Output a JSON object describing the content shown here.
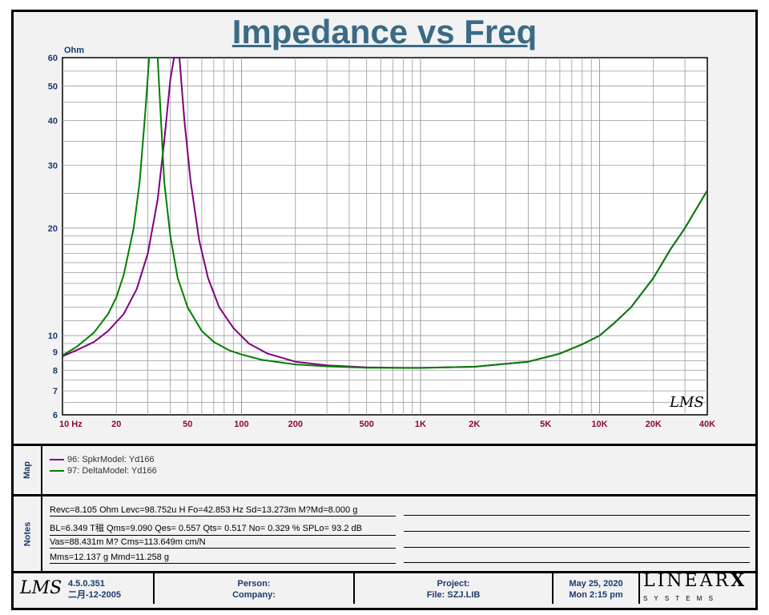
{
  "chart_data": {
    "type": "line",
    "title": "Impedance vs Freq",
    "ylabel": "Ohm",
    "x_scale": "log",
    "y_scale": "log",
    "xlim": [
      10,
      40000
    ],
    "ylim": [
      6,
      60
    ],
    "grid": true,
    "x_ticks": [
      {
        "v": 10,
        "label": "10  Hz"
      },
      {
        "v": 20,
        "label": "20"
      },
      {
        "v": 50,
        "label": "50"
      },
      {
        "v": 100,
        "label": "100"
      },
      {
        "v": 200,
        "label": "200"
      },
      {
        "v": 500,
        "label": "500"
      },
      {
        "v": 1000,
        "label": "1K"
      },
      {
        "v": 2000,
        "label": "2K"
      },
      {
        "v": 5000,
        "label": "5K"
      },
      {
        "v": 10000,
        "label": "10K"
      },
      {
        "v": 20000,
        "label": "20K"
      },
      {
        "v": 40000,
        "label": "40K"
      }
    ],
    "y_ticks": [
      {
        "v": 6,
        "label": "6"
      },
      {
        "v": 7,
        "label": "7"
      },
      {
        "v": 8,
        "label": "8"
      },
      {
        "v": 9,
        "label": "9"
      },
      {
        "v": 10,
        "label": "10"
      },
      {
        "v": 20,
        "label": "20"
      },
      {
        "v": 30,
        "label": "30"
      },
      {
        "v": 40,
        "label": "40"
      },
      {
        "v": 50,
        "label": "50"
      },
      {
        "v": 60,
        "label": "60"
      }
    ],
    "series": [
      {
        "name": "96: SpkrModel: Yd166",
        "color": "#800080",
        "x": [
          10,
          12,
          15,
          18,
          22,
          26,
          30,
          34,
          37,
          40,
          42,
          45,
          48,
          52,
          58,
          65,
          75,
          90,
          110,
          140,
          200,
          300,
          500,
          800,
          1000,
          2000,
          4000,
          6000,
          8000,
          10000,
          12000,
          15000,
          20000,
          25000,
          30000,
          40000
        ],
        "y": [
          8.75,
          9.1,
          9.6,
          10.3,
          11.5,
          13.5,
          17,
          24,
          35,
          52,
          60,
          60,
          40,
          27,
          18.5,
          14.5,
          12,
          10.5,
          9.5,
          8.9,
          8.45,
          8.25,
          8.15,
          8.12,
          8.12,
          8.18,
          8.45,
          8.9,
          9.45,
          10.0,
          10.8,
          12.0,
          14.5,
          17.5,
          20.0,
          25.5
        ]
      },
      {
        "name": "97: DeltaModel: Yd166",
        "color": "#008000",
        "x": [
          10,
          12,
          15,
          18,
          20,
          22,
          25,
          27,
          29,
          30.5,
          31.5,
          34,
          35.5,
          37,
          40,
          44,
          50,
          60,
          70,
          85,
          100,
          130,
          200,
          300,
          500,
          800,
          1000,
          2000,
          4000,
          6000,
          8000,
          10000,
          12000,
          15000,
          20000,
          25000,
          30000,
          40000
        ],
        "y": [
          8.8,
          9.3,
          10.2,
          11.5,
          12.8,
          14.8,
          20,
          27,
          42,
          60,
          60,
          60,
          40,
          27,
          19,
          14.5,
          12,
          10.3,
          9.6,
          9.1,
          8.85,
          8.55,
          8.3,
          8.2,
          8.13,
          8.12,
          8.12,
          8.18,
          8.45,
          8.9,
          9.45,
          10.0,
          10.8,
          12.0,
          14.5,
          17.5,
          20.0,
          25.5
        ]
      }
    ]
  },
  "map": {
    "label": "Map",
    "legend": [
      {
        "text": "96: SpkrModel: Yd166",
        "color": "#800080"
      },
      {
        "text": "97: DeltaModel: Yd166",
        "color": "#008000"
      }
    ]
  },
  "notes": {
    "label": "Notes",
    "lines": [
      "Revc=8.105 Ohm  Levc=98.752u H  Fo=42.853 Hz  Sd=13.273m M?Md=8.000 g",
      "BL=6.349 T稵  Qms=9.090  Qes= 0.557  Qts= 0.517  No= 0.329 %  SPLo= 93.2 dB",
      "Vas=88.431m M? Cms=113.649m cm/N",
      "Mms=12.137 g  Mmd=11.258 g"
    ]
  },
  "footer": {
    "logo": "LMS",
    "version": "4.5.0.351",
    "build_date": "二月-12-2005",
    "person": "Person:",
    "company": "Company:",
    "project": "Project:",
    "file": "File: SZJ.LIB",
    "date": "May 25, 2020",
    "time": "Mon  2:15 pm",
    "brand_top": "LINEAR",
    "brand_x": "X",
    "brand_bottom": "S Y S T E M S"
  },
  "watermark": "LMS",
  "colors": {
    "title": "#3b6a86",
    "tick_label": "#1a3a6e",
    "x_tick_label": "#8b0a30",
    "grid": "#9a9a9a"
  }
}
